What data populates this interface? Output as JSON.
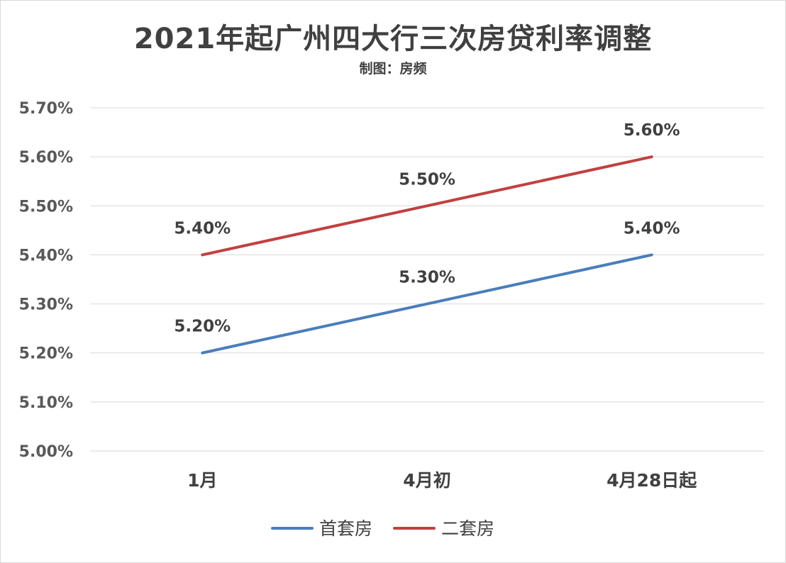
{
  "chart_data": {
    "type": "line",
    "title": "2021年起广州四大行三次房贷利率调整",
    "subtitle": "制图：房频",
    "categories": [
      "1月",
      "4月初",
      "4月28日起"
    ],
    "series": [
      {
        "name": "首套房",
        "values": [
          5.2,
          5.3,
          5.4
        ],
        "labels": [
          "5.20%",
          "5.30%",
          "5.40%"
        ],
        "color": "#4a7ebb"
      },
      {
        "name": "二套房",
        "values": [
          5.4,
          5.5,
          5.6
        ],
        "labels": [
          "5.40%",
          "5.50%",
          "5.60%"
        ],
        "color": "#c0413f"
      }
    ],
    "yticks": [
      "5.00%",
      "5.10%",
      "5.20%",
      "5.30%",
      "5.40%",
      "5.50%",
      "5.60%",
      "5.70%"
    ],
    "ylim": [
      5.0,
      5.7
    ],
    "grid": true,
    "legend_position": "bottom"
  }
}
